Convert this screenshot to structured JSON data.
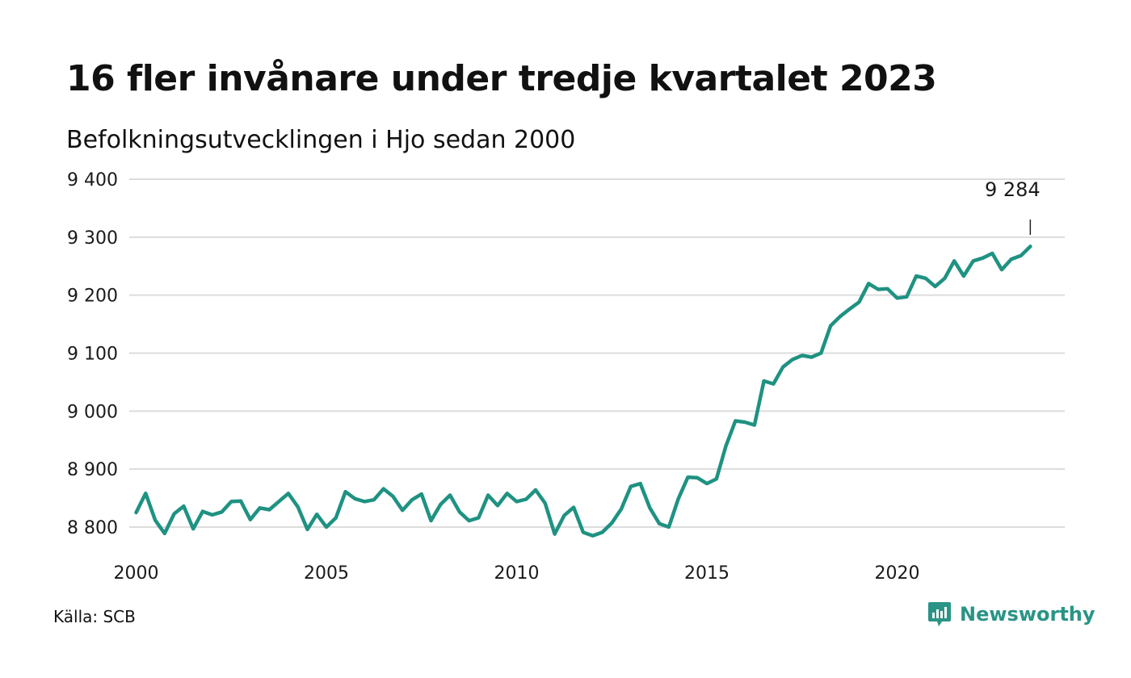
{
  "header": {
    "title": "16 fler invånare under tredje kvartalet 2023",
    "subtitle": "Befolkningsutvecklingen i Hjo sedan 2000"
  },
  "footer": {
    "source": "Källa: SCB",
    "brand": "Newsworthy",
    "brand_icon": "newsworthy-logo-icon"
  },
  "colors": {
    "line": "#1f9282",
    "grid": "#dcdcdc",
    "brand": "#2a9486"
  },
  "chart_data": {
    "type": "line",
    "title": "16 fler invånare under tredje kvartalet 2023",
    "subtitle": "Befolkningsutvecklingen i Hjo sedan 2000",
    "xlabel": "",
    "ylabel": "",
    "grid": true,
    "ylim": [
      8800,
      9400
    ],
    "y_ticks": [
      8800,
      8900,
      9000,
      9100,
      9200,
      9300,
      9400
    ],
    "y_tick_labels": [
      "8 800",
      "8 900",
      "9 000",
      "9 100",
      "9 200",
      "9 300",
      "9 400"
    ],
    "x_ticks": [
      2000,
      2005,
      2010,
      2015,
      2020
    ],
    "x_tick_labels": [
      "2000",
      "2005",
      "2010",
      "2015",
      "2020"
    ],
    "annotation": {
      "label": "9 284",
      "value": 9284,
      "period": "2023 Q3"
    },
    "series": [
      {
        "period_start": "2000 Q1",
        "frequency": "quarterly",
        "values": [
          8825,
          8858,
          8812,
          8789,
          8823,
          8836,
          8797,
          8827,
          8821,
          8826,
          8844,
          8845,
          8813,
          8833,
          8830,
          8844,
          8858,
          8835,
          8796,
          8822,
          8800,
          8816,
          8861,
          8849,
          8844,
          8847,
          8866,
          8853,
          8829,
          8847,
          8857,
          8811,
          8839,
          8855,
          8826,
          8811,
          8816,
          8855,
          8837,
          8858,
          8844,
          8848,
          8864,
          8841,
          8788,
          8820,
          8834,
          8791,
          8785,
          8791,
          8807,
          8831,
          8870,
          8875,
          8833,
          8806,
          8800,
          8849,
          8886,
          8885,
          8875,
          8883,
          8940,
          8983,
          8981,
          8976,
          9052,
          9047,
          9076,
          9089,
          9096,
          9093,
          9100,
          9147,
          9163,
          9176,
          9188,
          9220,
          9210,
          9211,
          9195,
          9197,
          9233,
          9229,
          9215,
          9229,
          9259,
          9233,
          9259,
          9264,
          9272,
          9244,
          9262,
          9268,
          9284
        ]
      }
    ]
  }
}
